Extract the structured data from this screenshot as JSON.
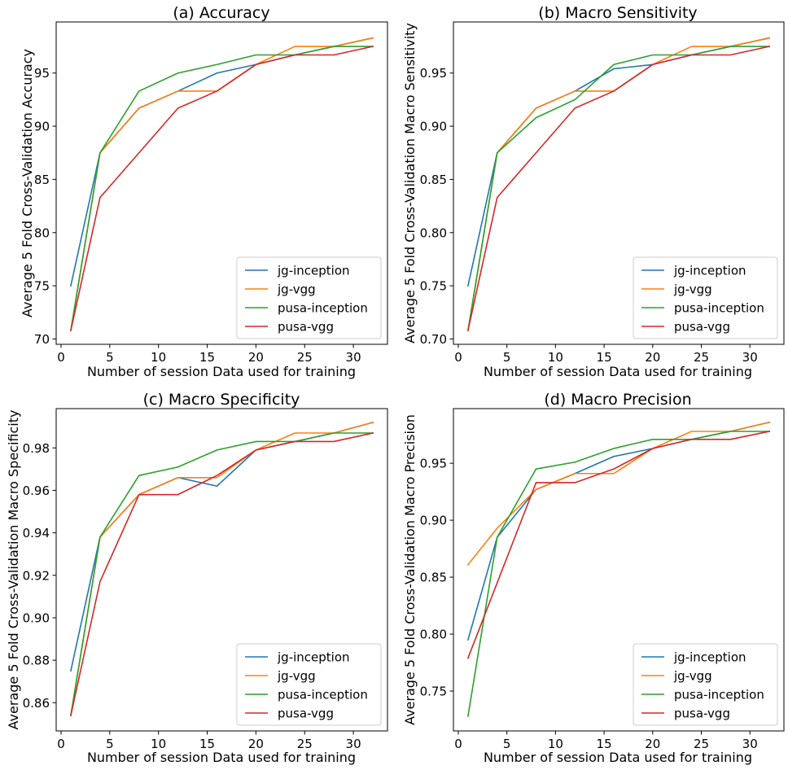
{
  "series_colors": {
    "jg-inception": "#1f77b4",
    "jg-vgg": "#ff7f0e",
    "pusa-inception": "#2ca02c",
    "pusa-vgg": "#d62728"
  },
  "chart_data": [
    {
      "type": "line",
      "title": "(a) Accuracy",
      "xlabel": "Number of session Data used for training",
      "ylabel": "Average 5 Fold Cross-Validation Accuracy",
      "xlim": [
        -0.5,
        33.5
      ],
      "ylim": [
        69.5,
        99.8
      ],
      "xticks": [
        0,
        5,
        10,
        15,
        20,
        25,
        30
      ],
      "yticks": [
        70,
        75,
        80,
        85,
        90,
        95
      ],
      "ytick_decimals": 0,
      "legend": "lower-right",
      "series": [
        {
          "name": "jg-inception",
          "x": [
            1,
            4,
            8,
            12,
            16,
            20,
            24,
            28,
            32
          ],
          "y": [
            75.0,
            87.5,
            91.7,
            93.3,
            95.0,
            95.8,
            96.7,
            97.5,
            98.3
          ]
        },
        {
          "name": "jg-vgg",
          "x": [
            1,
            4,
            8,
            12,
            16,
            20,
            24,
            28,
            32
          ],
          "y": [
            70.8,
            87.5,
            91.7,
            93.3,
            93.3,
            95.8,
            97.5,
            97.5,
            98.3
          ]
        },
        {
          "name": "pusa-inception",
          "x": [
            1,
            4,
            8,
            12,
            16,
            20,
            24,
            28,
            32
          ],
          "y": [
            70.8,
            87.5,
            93.3,
            95.0,
            95.8,
            96.7,
            96.7,
            97.5,
            97.5
          ]
        },
        {
          "name": "pusa-vgg",
          "x": [
            1,
            4,
            8,
            12,
            16,
            20,
            24,
            28,
            32
          ],
          "y": [
            70.8,
            83.3,
            87.5,
            91.7,
            93.3,
            95.8,
            96.7,
            96.7,
            97.5
          ]
        }
      ]
    },
    {
      "type": "line",
      "title": "(b) Macro Sensitivity",
      "xlabel": "Number of session Data used for training",
      "ylabel": "Average 5 Fold Cross-Validation Macro Sensitivity",
      "xlim": [
        -0.5,
        33.5
      ],
      "ylim": [
        0.695,
        0.998
      ],
      "xticks": [
        0,
        5,
        10,
        15,
        20,
        25,
        30
      ],
      "yticks": [
        0.7,
        0.75,
        0.8,
        0.85,
        0.9,
        0.95
      ],
      "ytick_decimals": 2,
      "legend": "lower-right",
      "series": [
        {
          "name": "jg-inception",
          "x": [
            1,
            4,
            8,
            12,
            16,
            20,
            24,
            28,
            32
          ],
          "y": [
            0.75,
            0.875,
            0.917,
            0.933,
            0.954,
            0.958,
            0.967,
            0.975,
            0.983
          ]
        },
        {
          "name": "jg-vgg",
          "x": [
            1,
            4,
            8,
            12,
            16,
            20,
            24,
            28,
            32
          ],
          "y": [
            0.708,
            0.875,
            0.917,
            0.933,
            0.933,
            0.958,
            0.975,
            0.975,
            0.983
          ]
        },
        {
          "name": "pusa-inception",
          "x": [
            1,
            4,
            8,
            12,
            16,
            20,
            24,
            28,
            32
          ],
          "y": [
            0.708,
            0.875,
            0.908,
            0.925,
            0.958,
            0.967,
            0.967,
            0.975,
            0.975
          ]
        },
        {
          "name": "pusa-vgg",
          "x": [
            1,
            4,
            8,
            12,
            16,
            20,
            24,
            28,
            32
          ],
          "y": [
            0.708,
            0.833,
            0.875,
            0.917,
            0.933,
            0.958,
            0.967,
            0.967,
            0.975
          ]
        }
      ]
    },
    {
      "type": "line",
      "title": "(c) Macro Specificity",
      "xlabel": "Number of session Data used for training",
      "ylabel": "Average 5 Fold Cross-Validation Macro Specificity",
      "xlim": [
        -0.5,
        33.5
      ],
      "ylim": [
        0.8467,
        0.9985
      ],
      "xticks": [
        0,
        5,
        10,
        15,
        20,
        25,
        30
      ],
      "yticks": [
        0.86,
        0.88,
        0.9,
        0.92,
        0.94,
        0.96,
        0.98
      ],
      "ytick_decimals": 2,
      "legend": "lower-right",
      "series": [
        {
          "name": "jg-inception",
          "x": [
            1,
            4,
            8,
            12,
            16,
            20,
            24,
            28,
            32
          ],
          "y": [
            0.875,
            0.938,
            0.958,
            0.966,
            0.962,
            0.979,
            0.983,
            0.987,
            0.992
          ]
        },
        {
          "name": "jg-vgg",
          "x": [
            1,
            4,
            8,
            12,
            16,
            20,
            24,
            28,
            32
          ],
          "y": [
            0.854,
            0.938,
            0.958,
            0.966,
            0.966,
            0.979,
            0.987,
            0.987,
            0.992
          ]
        },
        {
          "name": "pusa-inception",
          "x": [
            1,
            4,
            8,
            12,
            16,
            20,
            24,
            28,
            32
          ],
          "y": [
            0.854,
            0.938,
            0.967,
            0.971,
            0.979,
            0.983,
            0.983,
            0.987,
            0.987
          ]
        },
        {
          "name": "pusa-vgg",
          "x": [
            1,
            4,
            8,
            12,
            16,
            20,
            24,
            28,
            32
          ],
          "y": [
            0.854,
            0.917,
            0.958,
            0.958,
            0.967,
            0.979,
            0.983,
            0.983,
            0.987
          ]
        }
      ]
    },
    {
      "type": "line",
      "title": "(d) Macro Precision",
      "xlabel": "Number of session Data used for training",
      "ylabel": "Average 5 Fold Cross-Validation Macro Precision",
      "xlim": [
        -0.5,
        33.5
      ],
      "ylim": [
        0.715,
        0.998
      ],
      "xticks": [
        0,
        5,
        10,
        15,
        20,
        25,
        30
      ],
      "yticks": [
        0.75,
        0.8,
        0.85,
        0.9,
        0.95
      ],
      "ytick_decimals": 2,
      "legend": "lower-right",
      "series": [
        {
          "name": "jg-inception",
          "x": [
            1,
            4,
            8,
            12,
            16,
            20,
            24,
            28,
            32
          ],
          "y": [
            0.795,
            0.885,
            0.927,
            0.941,
            0.956,
            0.963,
            0.971,
            0.978,
            0.986
          ]
        },
        {
          "name": "jg-vgg",
          "x": [
            1,
            4,
            8,
            12,
            16,
            20,
            24,
            28,
            32
          ],
          "y": [
            0.861,
            0.893,
            0.927,
            0.941,
            0.941,
            0.963,
            0.978,
            0.978,
            0.986
          ]
        },
        {
          "name": "pusa-inception",
          "x": [
            1,
            4,
            8,
            12,
            16,
            20,
            24,
            28,
            32
          ],
          "y": [
            0.728,
            0.885,
            0.945,
            0.951,
            0.963,
            0.971,
            0.971,
            0.978,
            0.978
          ]
        },
        {
          "name": "pusa-vgg",
          "x": [
            1,
            4,
            8,
            12,
            16,
            20,
            24,
            28,
            32
          ],
          "y": [
            0.779,
            0.845,
            0.933,
            0.933,
            0.945,
            0.963,
            0.971,
            0.971,
            0.978
          ]
        }
      ]
    }
  ]
}
